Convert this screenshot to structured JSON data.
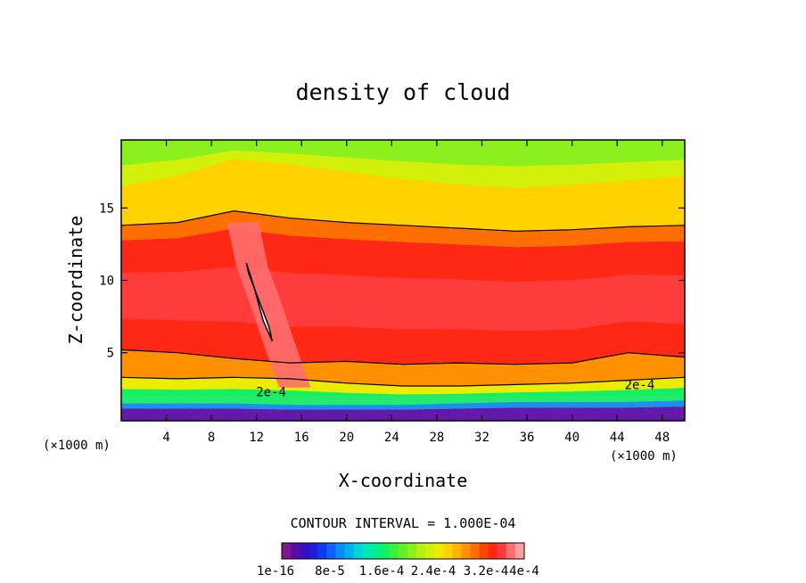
{
  "chart_data": {
    "type": "heatmap",
    "title": "density of cloud",
    "xlabel": "X-coordinate",
    "ylabel": "Z-coordinate",
    "x_unit_left": "(×1000 m)",
    "x_unit_right": "(×1000 m)",
    "xlim": [
      0,
      50
    ],
    "ylim": [
      0.3,
      19.7
    ],
    "x_ticks": [
      4,
      8,
      12,
      16,
      20,
      24,
      28,
      32,
      36,
      40,
      44,
      48
    ],
    "x_tick_labels": [
      "4",
      "8",
      "12",
      "16",
      "20",
      "24",
      "28",
      "32",
      "36",
      "40",
      "44",
      "48"
    ],
    "y_ticks": [
      5,
      10,
      15
    ],
    "y_tick_labels": [
      "5",
      "10",
      "15"
    ],
    "contour_interval_text": "CONTOUR INTERVAL = 1.000E-04",
    "contour_labels": [
      {
        "text": "2e-4",
        "x": 13.3,
        "z": 2.3
      },
      {
        "text": "2e-4",
        "x": 46.0,
        "z": 2.8
      }
    ],
    "colorbar": {
      "min": 1e-16,
      "max": 0.0004,
      "n_colors": 27,
      "tick_labels": [
        "1e-16",
        "8e-5",
        "1.6e-4",
        "2.4e-4",
        "3.2e-4",
        "4e-4"
      ],
      "colors": [
        "#7a1a8c",
        "#5a0aa8",
        "#3a0ec0",
        "#1f1ed8",
        "#0f3af0",
        "#1060ff",
        "#0a8cf6",
        "#00b0f0",
        "#00d2dc",
        "#00e6b4",
        "#00f08c",
        "#14f064",
        "#3cf03c",
        "#64f028",
        "#8cf01e",
        "#b4f014",
        "#d2f00a",
        "#ecec00",
        "#ffd200",
        "#ffb400",
        "#ff9100",
        "#ff6e00",
        "#ff4600",
        "#ff2814",
        "#ff3c3c",
        "#ff6e6e",
        "#ffa0a0"
      ]
    },
    "series": [
      {
        "name": "layer_boundaries_z_by_x",
        "x": [
          0,
          5,
          10,
          15,
          20,
          25,
          30,
          35,
          40,
          45,
          50
        ],
        "boundaries": [
          {
            "value": 0.00016,
            "z": [
              1.5,
              1.5,
              1.5,
              1.4,
              1.4,
              1.4,
              1.5,
              1.6,
              1.6,
              1.6,
              1.7
            ]
          },
          {
            "value": 0.0002,
            "z": [
              3.3,
              3.2,
              3.3,
              3.2,
              2.9,
              2.7,
              2.7,
              2.8,
              2.9,
              3.1,
              3.3
            ]
          },
          {
            "value": 0.00026,
            "z": [
              5.2,
              5.0,
              4.6,
              4.3,
              4.4,
              4.2,
              4.3,
              4.2,
              4.3,
              5.0,
              4.7
            ]
          },
          {
            "value": 0.0002,
            "z": [
              13.8,
              14.0,
              14.8,
              14.3,
              14.0,
              13.8,
              13.6,
              13.4,
              13.5,
              13.7,
              13.8
            ]
          },
          {
            "value": 0.00012,
            "z": [
              16.5,
              17.2,
              18.4,
              18.0,
              17.5,
              17.0,
              16.6,
              16.4,
              16.6,
              16.9,
              17.2
            ]
          }
        ]
      },
      {
        "name": "tilted_core_band",
        "x": [
          15.6,
          14.5,
          13.2,
          11.8,
          11.0
        ],
        "z": [
          2.6,
          5.0,
          8.0,
          11.0,
          14.0
        ]
      },
      {
        "name": "max_core_region",
        "x": [
          11.1,
          11.8,
          12.6,
          13.4,
          13.1,
          11.3
        ],
        "z": [
          11.2,
          9.5,
          7.2,
          5.8,
          6.8,
          10.5
        ]
      }
    ]
  }
}
